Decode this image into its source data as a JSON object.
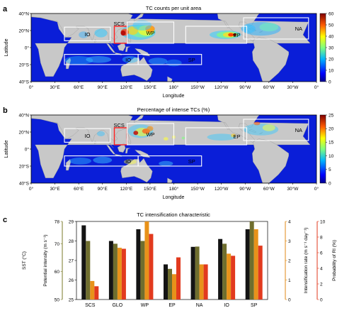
{
  "panels": [
    {
      "letter": "a",
      "title": "TC counts per unit area",
      "xlabel": "Longitude",
      "ylabel": "Latitude",
      "lat_ticks": [
        "40°N",
        "20°N",
        "0°",
        "20°S",
        "40°S"
      ],
      "lon_ticks": [
        "0°",
        "30°E",
        "60°E",
        "90°E",
        "120°E",
        "150°E",
        "180°",
        "150°W",
        "120°W",
        "90°W",
        "60°W",
        "30°W",
        "0°"
      ],
      "colorbar": {
        "ticks": [
          "0",
          "10",
          "20",
          "30",
          "40",
          "50",
          "60"
        ],
        "max": 60
      },
      "boxes": [
        {
          "label": "IO",
          "lon": [
            42,
            100
          ],
          "lat": [
            8,
            24
          ],
          "color": "#ffffff"
        },
        {
          "label": "SCS",
          "lon": [
            105,
            121
          ],
          "lat": [
            5,
            25
          ],
          "color": "#ff2020"
        },
        {
          "label": "WP",
          "lon": [
            121,
            180
          ],
          "lat": [
            5,
            30
          ],
          "color": "#ffffff"
        },
        {
          "label": "EP",
          "lon": [
            195,
            272
          ],
          "lat": [
            5,
            25
          ],
          "color": "#ffffff"
        },
        {
          "label": "NA",
          "lon": [
            268,
            350
          ],
          "lat": [
            10,
            35
          ],
          "color": "#ffffff"
        },
        {
          "label": "IO",
          "lon": [
            42,
            135
          ],
          "lat": [
            -20,
            -8
          ],
          "color": "#ffffff"
        },
        {
          "label": "SP",
          "lon": [
            135,
            215
          ],
          "lat": [
            -20,
            -8
          ],
          "color": "#ffffff"
        }
      ]
    },
    {
      "letter": "b",
      "title": "Percentage of intense TCs (%)",
      "xlabel": "Longitude",
      "ylabel": "Latitude",
      "lat_ticks": [
        "40°N",
        "20°N",
        "0°",
        "20°S",
        "40°S"
      ],
      "lon_ticks": [
        "0°",
        "30°E",
        "60°E",
        "90°E",
        "120°E",
        "150°E",
        "180°",
        "150°W",
        "120°W",
        "90°W",
        "60°W",
        "30°W",
        "0°"
      ],
      "colorbar": {
        "ticks": [
          "0",
          "5",
          "10",
          "15",
          "20",
          "25"
        ],
        "max": 25
      },
      "boxes": [
        {
          "label": "IO",
          "lon": [
            42,
            100
          ],
          "lat": [
            8,
            24
          ],
          "color": "#ffffff"
        },
        {
          "label": "SCS",
          "lon": [
            105,
            121
          ],
          "lat": [
            5,
            25
          ],
          "color": "#ff2020"
        },
        {
          "label": "WP",
          "lon": [
            121,
            180
          ],
          "lat": [
            5,
            30
          ],
          "color": "#ffffff"
        },
        {
          "label": "EP",
          "lon": [
            195,
            272
          ],
          "lat": [
            5,
            25
          ],
          "color": "#ffffff"
        },
        {
          "label": "NA",
          "lon": [
            268,
            350
          ],
          "lat": [
            10,
            35
          ],
          "color": "#ffffff"
        },
        {
          "label": "IO",
          "lon": [
            42,
            135
          ],
          "lat": [
            -20,
            -8
          ],
          "color": "#ffffff"
        },
        {
          "label": "SP",
          "lon": [
            135,
            215
          ],
          "lat": [
            -20,
            -8
          ],
          "color": "#ffffff"
        }
      ]
    }
  ],
  "chart_data": {
    "type": "bar",
    "letter": "c",
    "title": "TC intensification characteristic",
    "categories": [
      "SCS",
      "GLO",
      "WP",
      "EP",
      "NA",
      "IO",
      "SP"
    ],
    "axes": [
      {
        "label": "SST (°C)",
        "range": [
          25,
          29
        ],
        "ticks": [
          "25",
          "26",
          "27",
          "28",
          "29"
        ],
        "color": "#000000"
      },
      {
        "label": "Potential intensity (m s⁻¹)",
        "range": [
          50,
          78
        ],
        "ticks": [
          "50",
          "60",
          "70",
          "78"
        ],
        "color": "#7a7a2a"
      },
      {
        "label": "Intensification rate (m s⁻¹ day⁻¹)",
        "range": [
          0,
          4
        ],
        "ticks": [
          "0",
          "1",
          "2",
          "3",
          "4"
        ],
        "color": "#e08a14"
      },
      {
        "label": "Probability of RI (%)",
        "range": [
          0,
          10
        ],
        "ticks": [
          "0",
          "2",
          "4",
          "6",
          "8",
          "10"
        ],
        "color": "#e23a1e"
      }
    ],
    "series": [
      {
        "axis": 0,
        "color": "#141414",
        "values": [
          28.8,
          28.0,
          28.6,
          26.8,
          27.7,
          28.1,
          28.6
        ]
      },
      {
        "axis": 1,
        "color": "#6f6e2e",
        "values": [
          71,
          70,
          71,
          61,
          69,
          70,
          78
        ]
      },
      {
        "axis": 2,
        "color": "#e8921a",
        "values": [
          0.95,
          2.65,
          4.0,
          1.3,
          1.8,
          2.35,
          3.6
        ]
      },
      {
        "axis": 3,
        "color": "#e23a1e",
        "values": [
          1.7,
          6.5,
          8.4,
          5.4,
          4.5,
          5.6,
          6.9
        ]
      }
    ]
  }
}
